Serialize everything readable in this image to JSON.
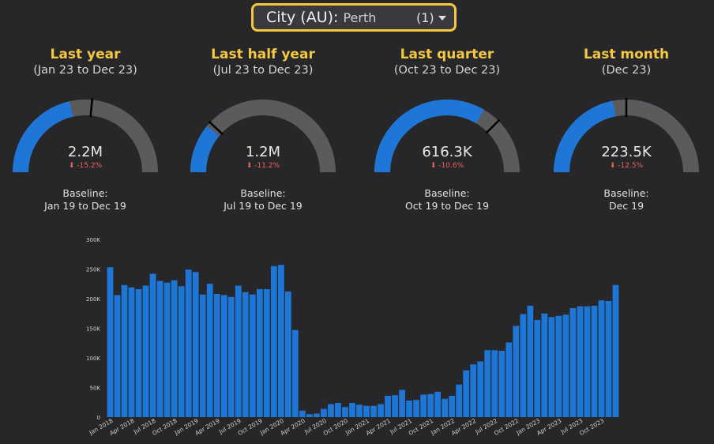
{
  "filter": {
    "label": "City (AU):",
    "value": "Perth",
    "count": "(1)"
  },
  "colors": {
    "accent": "#f5c842",
    "bar": "#1e77d6",
    "track": "#5b5b5e",
    "negative": "#f0635c"
  },
  "gauges": [
    {
      "title": "Last year",
      "range": "(Jan 23 to Dec 23)",
      "value": "2.2M",
      "delta": "-15.2%",
      "baseline_label": "Baseline:",
      "baseline_range": "Jan 19 to Dec 19",
      "fill_fraction": 0.43,
      "target_fraction": 0.53
    },
    {
      "title": "Last half year",
      "range": "(Jul 23 to Dec 23)",
      "value": "1.2M",
      "delta": "-11.2%",
      "baseline_label": "Baseline:",
      "baseline_range": "Jul 19 to Dec 19",
      "fill_fraction": 0.22,
      "target_fraction": 0.24
    },
    {
      "title": "Last quarter",
      "range": "(Oct 23 to Dec 23)",
      "value": "616.3K",
      "delta": "-10.6%",
      "baseline_label": "Baseline:",
      "baseline_range": "Oct 19 to Dec 19",
      "fill_fraction": 0.67,
      "target_fraction": 0.75
    },
    {
      "title": "Last month",
      "range": "(Dec 23)",
      "value": "223.5K",
      "delta": "-12.5%",
      "baseline_label": "Baseline:",
      "baseline_range": "Dec 19",
      "fill_fraction": 0.44,
      "target_fraction": 0.5
    }
  ],
  "chart_data": {
    "type": "bar",
    "ylim": [
      0,
      300000
    ],
    "yticks": [
      0,
      50000,
      100000,
      150000,
      200000,
      250000,
      300000
    ],
    "ytick_labels": [
      "0",
      "50K",
      "100K",
      "150K",
      "200K",
      "250K",
      "300K"
    ],
    "xtick_labels": [
      "Jan 2018",
      "Apr 2018",
      "Jul 2018",
      "Oct 2018",
      "Jan 2019",
      "Apr 2019",
      "Jul 2019",
      "Oct 2019",
      "Jan 2020",
      "Apr 2020",
      "Jul 2020",
      "Oct 2020",
      "Jan 2021",
      "Apr 2021",
      "Jul 2021",
      "Oct 2021",
      "Jan 2022",
      "Apr 2022",
      "Jul 2022",
      "Oct 2022",
      "Jan 2023",
      "Apr 2023",
      "Jul 2023",
      "Oct 2023"
    ],
    "categories": [
      "Jan 2018",
      "Feb 2018",
      "Mar 2018",
      "Apr 2018",
      "May 2018",
      "Jun 2018",
      "Jul 2018",
      "Aug 2018",
      "Sep 2018",
      "Oct 2018",
      "Nov 2018",
      "Dec 2018",
      "Jan 2019",
      "Feb 2019",
      "Mar 2019",
      "Apr 2019",
      "May 2019",
      "Jun 2019",
      "Jul 2019",
      "Aug 2019",
      "Sep 2019",
      "Oct 2019",
      "Nov 2019",
      "Dec 2019",
      "Jan 2020",
      "Feb 2020",
      "Mar 2020",
      "Apr 2020",
      "May 2020",
      "Jun 2020",
      "Jul 2020",
      "Aug 2020",
      "Sep 2020",
      "Oct 2020",
      "Nov 2020",
      "Dec 2020",
      "Jan 2021",
      "Feb 2021",
      "Mar 2021",
      "Apr 2021",
      "May 2021",
      "Jun 2021",
      "Jul 2021",
      "Aug 2021",
      "Sep 2021",
      "Oct 2021",
      "Nov 2021",
      "Dec 2021",
      "Jan 2022",
      "Feb 2022",
      "Mar 2022",
      "Apr 2022",
      "May 2022",
      "Jun 2022",
      "Jul 2022",
      "Aug 2022",
      "Sep 2022",
      "Oct 2022",
      "Nov 2022",
      "Dec 2022",
      "Jan 2023",
      "Feb 2023",
      "Mar 2023",
      "Apr 2023",
      "May 2023",
      "Jun 2023",
      "Jul 2023",
      "Aug 2023",
      "Sep 2023",
      "Oct 2023",
      "Nov 2023",
      "Dec 2023"
    ],
    "values": [
      253000,
      206000,
      223000,
      219000,
      216000,
      222000,
      242000,
      230000,
      227000,
      231000,
      221000,
      249000,
      245000,
      207000,
      225000,
      208000,
      206000,
      203000,
      222000,
      211000,
      207000,
      216000,
      216000,
      255000,
      257000,
      212000,
      147000,
      11000,
      5000,
      6000,
      14000,
      22000,
      24000,
      17000,
      24000,
      21000,
      19000,
      19000,
      22000,
      36000,
      37000,
      46000,
      28000,
      29000,
      38000,
      39000,
      43000,
      31000,
      36000,
      55000,
      79000,
      89000,
      94000,
      113000,
      113000,
      112000,
      126000,
      154000,
      174000,
      188000,
      164000,
      175000,
      169000,
      171000,
      173000,
      184000,
      187000,
      187000,
      188000,
      197000,
      196000,
      223000
    ]
  }
}
